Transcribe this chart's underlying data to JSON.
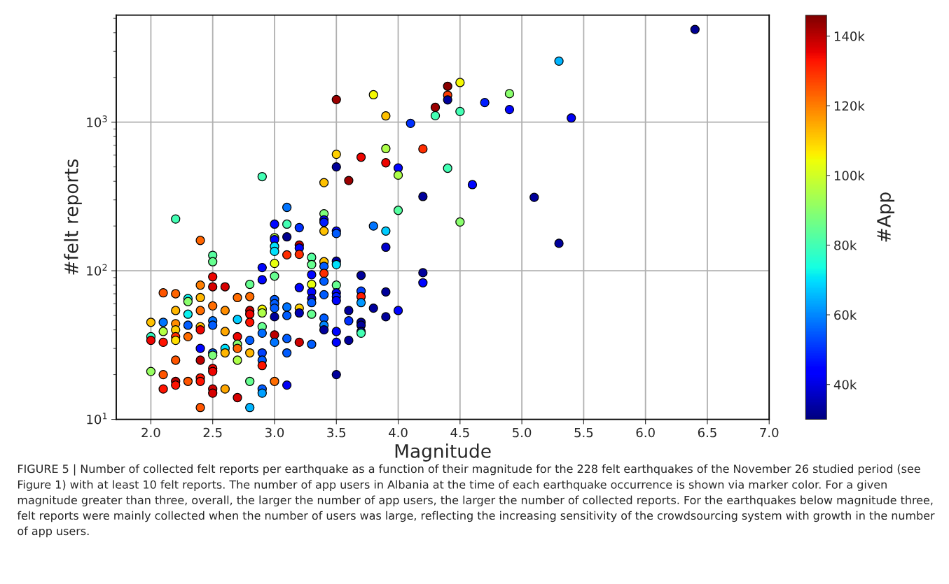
{
  "chart_data": {
    "type": "scatter",
    "xlabel": "Magnitude",
    "ylabel": "#felt reports",
    "clabel": "#App",
    "log": "y",
    "grid": true,
    "marker": "circle",
    "legend": false,
    "xlim": [
      1.72,
      7.0
    ],
    "xticks": [
      {
        "value": 2.0,
        "label": "2.0"
      },
      {
        "value": 2.5,
        "label": "2.5"
      },
      {
        "value": 3.0,
        "label": "3.0"
      },
      {
        "value": 3.5,
        "label": "3.5"
      },
      {
        "value": 4.0,
        "label": "4.0"
      },
      {
        "value": 4.5,
        "label": "4.5"
      },
      {
        "value": 5.0,
        "label": "5.0"
      },
      {
        "value": 5.5,
        "label": "5.5"
      },
      {
        "value": 6.0,
        "label": "6.0"
      },
      {
        "value": 6.5,
        "label": "6.5"
      },
      {
        "value": 7.0,
        "label": "7.0"
      }
    ],
    "ylim": [
      10,
      5250
    ],
    "yticks": [
      {
        "value": 10,
        "label": "10$^{1}$"
      },
      {
        "value": 100,
        "label": "10$^{2}$"
      },
      {
        "value": 1000,
        "label": "10$^{3}$"
      }
    ],
    "clim": [
      30000,
      146000
    ],
    "cticks": [
      {
        "value": 40000,
        "label": "40k"
      },
      {
        "value": 60000,
        "label": "60k"
      },
      {
        "value": 80000,
        "label": "80k"
      },
      {
        "value": 100000,
        "label": "100k"
      },
      {
        "value": 120000,
        "label": "120k"
      },
      {
        "value": 140000,
        "label": "140k"
      }
    ],
    "x": [
      2.0,
      2.0,
      2.0,
      2.0,
      2.1,
      2.1,
      2.1,
      2.1,
      2.1,
      2.1,
      2.2,
      2.2,
      2.2,
      2.2,
      2.2,
      2.2,
      2.2,
      2.2,
      2.2,
      2.2,
      2.3,
      2.3,
      2.3,
      2.3,
      2.3,
      2.3,
      2.4,
      2.4,
      2.4,
      2.4,
      2.4,
      2.4,
      2.4,
      2.4,
      2.4,
      2.4,
      2.4,
      2.5,
      2.5,
      2.5,
      2.5,
      2.5,
      2.5,
      2.5,
      2.5,
      2.5,
      2.5,
      2.5,
      2.5,
      2.5,
      2.6,
      2.6,
      2.6,
      2.6,
      2.6,
      2.6,
      2.7,
      2.7,
      2.7,
      2.7,
      2.7,
      2.7,
      2.7,
      2.8,
      2.8,
      2.8,
      2.8,
      2.8,
      2.8,
      2.8,
      2.8,
      2.8,
      2.9,
      2.9,
      2.9,
      2.9,
      2.9,
      2.9,
      2.9,
      2.9,
      2.9,
      2.9,
      2.9,
      2.9,
      3.0,
      3.0,
      3.0,
      3.0,
      3.0,
      3.0,
      3.0,
      3.0,
      3.0,
      3.0,
      3.0,
      3.0,
      3.0,
      3.0,
      3.1,
      3.1,
      3.1,
      3.1,
      3.1,
      3.1,
      3.1,
      3.1,
      3.1,
      3.2,
      3.2,
      3.2,
      3.2,
      3.2,
      3.2,
      3.2,
      3.2,
      3.3,
      3.3,
      3.3,
      3.3,
      3.3,
      3.3,
      3.3,
      3.3,
      3.3,
      3.4,
      3.4,
      3.4,
      3.4,
      3.4,
      3.4,
      3.4,
      3.4,
      3.4,
      3.4,
      3.4,
      3.4,
      3.4,
      3.5,
      3.5,
      3.5,
      3.5,
      3.5,
      3.5,
      3.5,
      3.5,
      3.5,
      3.5,
      3.5,
      3.5,
      3.5,
      3.5,
      3.6,
      3.6,
      3.6,
      3.6,
      3.7,
      3.7,
      3.7,
      3.7,
      3.7,
      3.7,
      3.7,
      3.7,
      3.7,
      3.8,
      3.8,
      3.8,
      3.9,
      3.9,
      3.9,
      3.9,
      3.9,
      3.9,
      3.9,
      4.0,
      4.0,
      4.0,
      4.0,
      4.1,
      4.2,
      4.2,
      4.2,
      4.2,
      4.3,
      4.3,
      4.4,
      4.4,
      4.4,
      4.4,
      4.5,
      4.5,
      4.5,
      4.6,
      4.7,
      4.9,
      4.9,
      5.1,
      5.3,
      5.3,
      5.4,
      6.4
    ],
    "values": [
      45,
      36,
      34,
      21,
      45,
      39,
      71,
      33,
      20,
      16,
      223,
      70,
      54,
      44,
      40,
      36,
      34,
      25,
      18,
      17,
      65,
      62,
      51,
      43,
      36,
      18,
      160,
      80,
      66,
      54,
      42,
      40,
      30,
      25,
      19,
      18,
      12,
      127,
      115,
      91,
      78,
      58,
      46,
      43,
      28,
      27,
      22,
      21,
      16,
      15,
      78,
      54,
      39,
      30,
      28,
      16,
      66,
      47,
      36,
      32,
      30,
      25,
      14,
      81,
      67,
      54,
      51,
      45,
      34,
      28,
      18,
      12,
      430,
      105,
      87,
      55,
      52,
      42,
      38,
      28,
      25,
      23,
      16,
      15,
      206,
      167,
      162,
      146,
      135,
      112,
      92,
      64,
      60,
      56,
      49,
      37,
      33,
      18,
      267,
      206,
      169,
      128,
      57,
      50,
      35,
      28,
      17,
      195,
      149,
      142,
      129,
      77,
      56,
      52,
      33,
      123,
      110,
      94,
      81,
      72,
      65,
      61,
      51,
      32,
      392,
      242,
      220,
      212,
      185,
      115,
      107,
      96,
      85,
      69,
      48,
      43,
      40,
      1420,
      608,
      500,
      185,
      178,
      116,
      110,
      80,
      71,
      67,
      63,
      39,
      33,
      20,
      405,
      54,
      46,
      34,
      581,
      93,
      73,
      67,
      61,
      45,
      43,
      39,
      38,
      1530,
      200,
      56,
      1102,
      664,
      533,
      185,
      144,
      72,
      49,
      492,
      440,
      255,
      54,
      982,
      661,
      316,
      97,
      83,
      1259,
      1106,
      1746,
      1520,
      1413,
      490,
      1850,
      1180,
      213,
      380,
      1355,
      1556,
      1217,
      312,
      2577,
      153,
      1067,
      4210
    ],
    "cvalues": [
      112000,
      78000,
      135000,
      92000,
      58000,
      96000,
      125000,
      133000,
      125000,
      133000,
      80000,
      123000,
      113000,
      118000,
      110000,
      130000,
      108000,
      125000,
      140000,
      133000,
      72000,
      90000,
      72000,
      55000,
      122000,
      125000,
      123000,
      120000,
      113000,
      122000,
      112000,
      135000,
      45000,
      140000,
      133000,
      133000,
      125000,
      83000,
      85000,
      135000,
      137000,
      122000,
      58000,
      55000,
      55000,
      88000,
      135000,
      135000,
      138000,
      137000,
      137000,
      118000,
      115000,
      70000,
      113000,
      115000,
      122000,
      68000,
      135000,
      90000,
      123000,
      95000,
      137000,
      85000,
      122000,
      140000,
      135000,
      133000,
      55000,
      113000,
      85000,
      65000,
      80000,
      45000,
      45000,
      105000,
      95000,
      85000,
      57000,
      52000,
      55000,
      133000,
      55000,
      63000,
      45000,
      97000,
      45000,
      70000,
      70000,
      103000,
      85000,
      55000,
      55000,
      55000,
      33000,
      140000,
      58000,
      122000,
      58000,
      80000,
      32000,
      130000,
      58000,
      55000,
      55000,
      55000,
      42000,
      50000,
      140000,
      45000,
      130000,
      45000,
      110000,
      35000,
      138000,
      83000,
      85000,
      45000,
      103000,
      45000,
      35000,
      55000,
      85000,
      55000,
      112000,
      88000,
      45000,
      48000,
      112000,
      112000,
      55000,
      130000,
      55000,
      55000,
      55000,
      60000,
      33000,
      143000,
      110000,
      33000,
      45000,
      55000,
      33000,
      70000,
      85000,
      45000,
      48000,
      45000,
      45000,
      45000,
      33000,
      143000,
      33000,
      50000,
      33000,
      135000,
      33000,
      52000,
      132000,
      62000,
      33000,
      33000,
      33000,
      80000,
      105000,
      58000,
      33000,
      112000,
      95000,
      135000,
      68000,
      38000,
      33000,
      33000,
      45000,
      95000,
      83000,
      45000,
      50000,
      130000,
      33000,
      33000,
      45000,
      143000,
      80000,
      145000,
      128000,
      33000,
      80000,
      105000,
      80000,
      90000,
      45000,
      48000,
      90000,
      45000,
      33000,
      65000,
      33000,
      42000,
      32000
    ],
    "annotations": [
      "FIGURE 5 | Number of collected felt reports per earthquake as a function of their magnitude for the 228 felt earthquakes of the November 26 studied period (see Figure 1) with at least 10 felt reports. The number of app users in Albania at the time of each earthquake occurrence is shown via marker color. For a given magnitude greater than three, overall, the larger the number of app users, the larger the number of collected reports. For the earthquakes below magnitude three, felt reports were mainly collected when the number of users was large, reflecting the increasing sensitivity of the crowdsourcing system with growth in the number of app users."
    ]
  }
}
